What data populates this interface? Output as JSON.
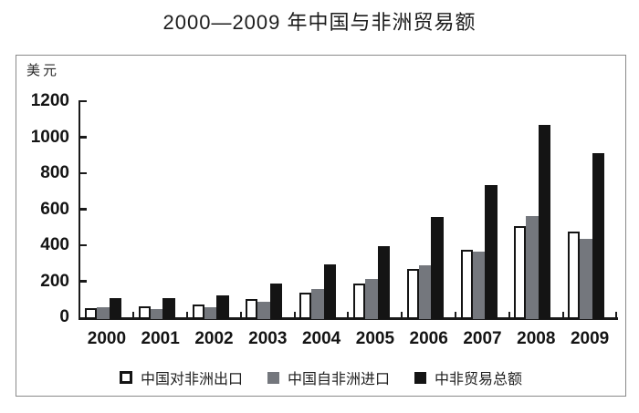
{
  "title": "2000—2009 年中国与非洲贸易额",
  "colors": {
    "bar_white": "#ffffff",
    "bar_gray": "#74777d",
    "bar_black": "#141414",
    "axis": "#1a1a1a",
    "frame_border": "#8a8a8a",
    "text": "#1a1a1a"
  },
  "chart_data": {
    "type": "bar",
    "title": "2000—2009 年中国与非洲贸易额",
    "categories": [
      "2000",
      "2001",
      "2002",
      "2003",
      "2004",
      "2005",
      "2006",
      "2007",
      "2008",
      "2009"
    ],
    "series": [
      {
        "name": "中国对非洲出口",
        "style": "export",
        "values": [
          50,
          60,
          70,
          102,
          138,
          187,
          267,
          373,
          508,
          477
        ]
      },
      {
        "name": "中国自非洲进口",
        "style": "import",
        "values": [
          56,
          48,
          54,
          84,
          157,
          211,
          288,
          363,
          560,
          433
        ]
      },
      {
        "name": "中非贸易总额",
        "style": "total",
        "values": [
          106,
          108,
          124,
          185,
          295,
          397,
          555,
          736,
          1068,
          911
        ]
      }
    ],
    "xlabel": "",
    "ylabel": "美元",
    "ylim": [
      0,
      1200
    ],
    "yticks": [
      0,
      200,
      400,
      600,
      800,
      1000,
      1200
    ],
    "grid": false,
    "legend_position": "bottom"
  }
}
